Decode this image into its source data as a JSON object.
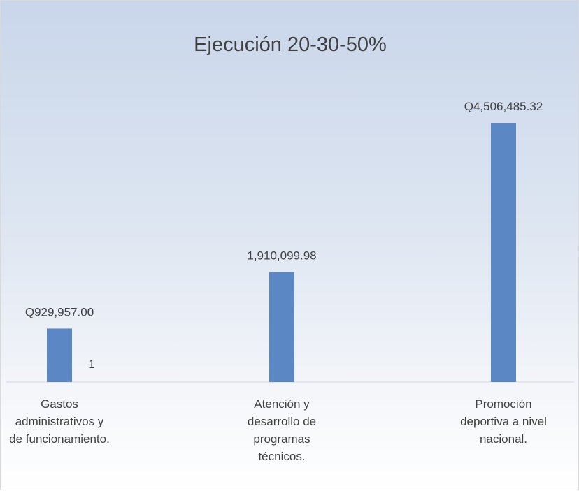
{
  "chart_data": {
    "type": "bar",
    "title": "Ejecución 20-30-50%",
    "categories": [
      "Gastos administrativos y de funcionamiento.",
      "Atención y desarrollo de programas técnicos.",
      "Promoción deportiva a nivel nacional."
    ],
    "values": [
      929957.0,
      1910099.98,
      4506485.32
    ],
    "value_labels": [
      "Q929,957.00",
      "1,910,099.98",
      "Q4,506,485.32"
    ],
    "annotations": [
      "1"
    ],
    "color": "#5b87c5"
  }
}
